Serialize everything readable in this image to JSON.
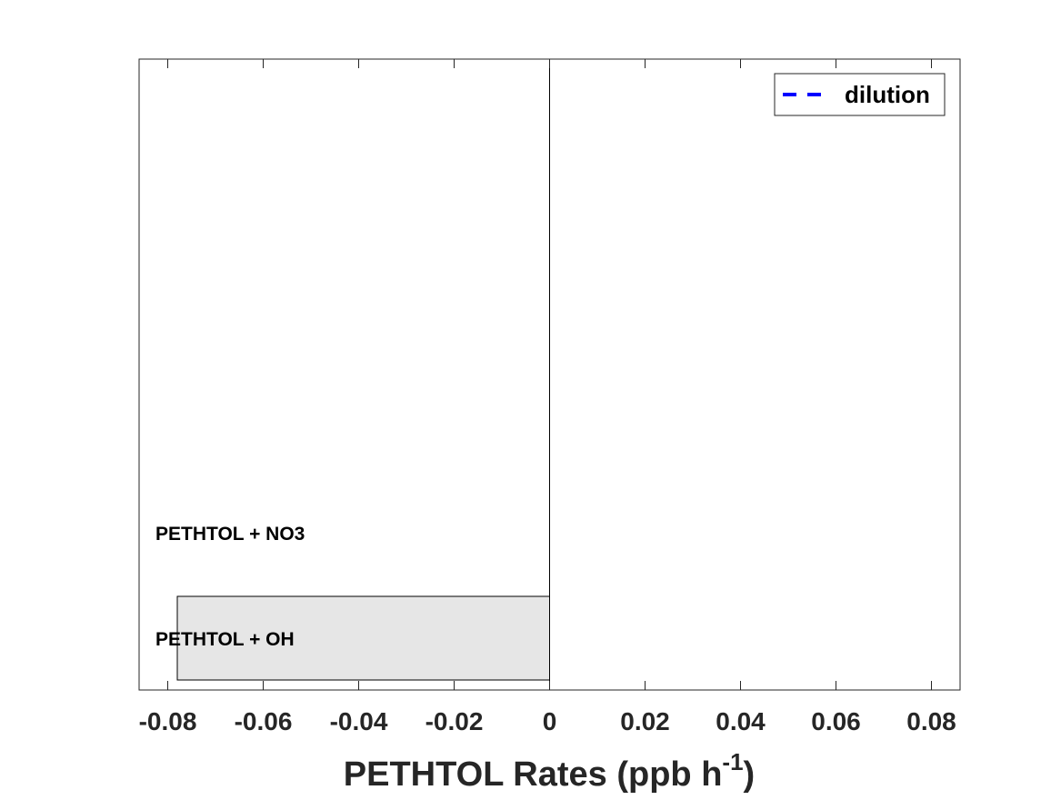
{
  "chart_data": {
    "type": "bar",
    "orientation": "horizontal",
    "categories": [
      "PETHTOL + OH",
      "PETHTOL + NO3"
    ],
    "series": [
      {
        "values": [
          -0.078,
          0.0
        ],
        "color": "#e6e6e6"
      }
    ],
    "xlabel_main": "PETHTOL Rates (ppb h",
    "xlabel_sup": "-1",
    "xlabel_close": ")",
    "xlim": [
      -0.086,
      0.086
    ],
    "xticks": [
      -0.08,
      -0.06,
      -0.04,
      -0.02,
      0,
      0.02,
      0.04,
      0.06,
      0.08
    ],
    "xtick_labels": [
      "-0.08",
      "-0.06",
      "-0.04",
      "-0.02",
      "0",
      "0.02",
      "0.04",
      "0.06",
      "0.08"
    ],
    "legend": {
      "position": "top-right",
      "entries": [
        {
          "label": "dilution",
          "color": "#0000ff",
          "style": "dashed"
        }
      ]
    },
    "grid": false
  }
}
